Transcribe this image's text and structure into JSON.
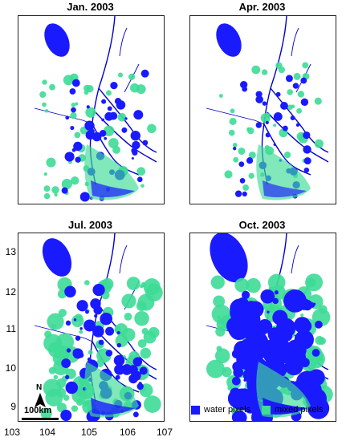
{
  "panels": [
    {
      "title": "Jan. 2003",
      "water": 1.0,
      "mixed": 0.8
    },
    {
      "title": "Apr. 2003",
      "water": 0.8,
      "mixed": 0.7
    },
    {
      "title": "Jul. 2003",
      "water": 1.3,
      "mixed": 1.6
    },
    {
      "title": "Oct. 2003",
      "water": 2.6,
      "mixed": 1.8
    }
  ],
  "yticks": [
    "13",
    "12",
    "11",
    "10",
    "9"
  ],
  "xticks": [
    "103",
    "104",
    "105",
    "106",
    "107"
  ],
  "legend": {
    "water_label": "water pixels",
    "mixed_label": "mixed pixels"
  },
  "north_label": "N",
  "scale_label": "100km",
  "colors": {
    "water": "#1a1aff",
    "mixed": "#3ddc97",
    "river": "#0000cc"
  }
}
